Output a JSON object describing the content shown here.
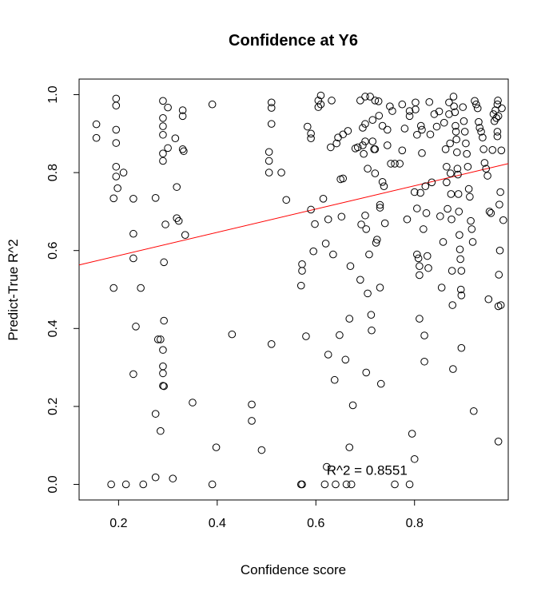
{
  "chart_data": {
    "type": "scatter",
    "title": "Confidence at Y6",
    "xlabel": "Confidence score",
    "ylabel": "Predict-True R^2",
    "xlim": [
      0.12,
      0.99
    ],
    "ylim": [
      -0.04,
      1.04
    ],
    "xticks": [
      0.2,
      0.4,
      0.6,
      0.8
    ],
    "xtick_labels": [
      "0.2",
      "0.4",
      "0.6",
      "0.8"
    ],
    "yticks": [
      0.0,
      0.2,
      0.4,
      0.6,
      0.8,
      1.0
    ],
    "ytick_labels": [
      "0.0",
      "0.2",
      "0.4",
      "0.6",
      "0.8",
      "1.0"
    ],
    "grid": false,
    "annotation": {
      "text": "R^2 = 0.8551",
      "x": 0.6,
      "y": 0.037
    },
    "regression_line": {
      "color": "#ff0000",
      "x": [
        0.12,
        0.99
      ],
      "y": [
        0.563,
        0.823
      ]
    },
    "points": [
      [
        0.155,
        0.924
      ],
      [
        0.155,
        0.889
      ],
      [
        0.19,
        0.734
      ],
      [
        0.19,
        0.504
      ],
      [
        0.195,
        0.99
      ],
      [
        0.195,
        0.972
      ],
      [
        0.195,
        0.91
      ],
      [
        0.195,
        0.876
      ],
      [
        0.195,
        0.815
      ],
      [
        0.195,
        0.79
      ],
      [
        0.198,
        0.76
      ],
      [
        0.21,
        0.8
      ],
      [
        0.185,
        0.0
      ],
      [
        0.215,
        0.0
      ],
      [
        0.23,
        0.733
      ],
      [
        0.23,
        0.643
      ],
      [
        0.23,
        0.58
      ],
      [
        0.23,
        0.283
      ],
      [
        0.235,
        0.405
      ],
      [
        0.245,
        0.504
      ],
      [
        0.25,
        0.0
      ],
      [
        0.275,
        0.735
      ],
      [
        0.275,
        0.181
      ],
      [
        0.28,
        0.372
      ],
      [
        0.285,
        0.372
      ],
      [
        0.285,
        0.137
      ],
      [
        0.29,
        0.984
      ],
      [
        0.29,
        0.94
      ],
      [
        0.29,
        0.919
      ],
      [
        0.29,
        0.897
      ],
      [
        0.29,
        0.849
      ],
      [
        0.29,
        0.83
      ],
      [
        0.29,
        0.345
      ],
      [
        0.29,
        0.303
      ],
      [
        0.29,
        0.285
      ],
      [
        0.29,
        0.253
      ],
      [
        0.292,
        0.252
      ],
      [
        0.292,
        0.42
      ],
      [
        0.292,
        0.57
      ],
      [
        0.295,
        0.667
      ],
      [
        0.3,
        0.967
      ],
      [
        0.3,
        0.863
      ],
      [
        0.275,
        0.018
      ],
      [
        0.31,
        0.015
      ],
      [
        0.315,
        0.888
      ],
      [
        0.318,
        0.763
      ],
      [
        0.318,
        0.683
      ],
      [
        0.322,
        0.676
      ],
      [
        0.33,
        0.96
      ],
      [
        0.33,
        0.945
      ],
      [
        0.33,
        0.86
      ],
      [
        0.332,
        0.855
      ],
      [
        0.335,
        0.64
      ],
      [
        0.35,
        0.21
      ],
      [
        0.39,
        0.975
      ],
      [
        0.39,
        0.0
      ],
      [
        0.398,
        0.095
      ],
      [
        0.43,
        0.385
      ],
      [
        0.47,
        0.205
      ],
      [
        0.47,
        0.163
      ],
      [
        0.49,
        0.088
      ],
      [
        0.505,
        0.853
      ],
      [
        0.505,
        0.83
      ],
      [
        0.505,
        0.8
      ],
      [
        0.51,
        0.98
      ],
      [
        0.51,
        0.966
      ],
      [
        0.51,
        0.925
      ],
      [
        0.51,
        0.36
      ],
      [
        0.53,
        0.8
      ],
      [
        0.54,
        0.73
      ],
      [
        0.57,
        0.51
      ],
      [
        0.572,
        0.565
      ],
      [
        0.572,
        0.548
      ],
      [
        0.57,
        0.0
      ],
      [
        0.572,
        0.0
      ],
      [
        0.58,
        0.38
      ],
      [
        0.583,
        0.918
      ],
      [
        0.59,
        0.9
      ],
      [
        0.59,
        0.888
      ],
      [
        0.59,
        0.705
      ],
      [
        0.595,
        0.598
      ],
      [
        0.598,
        0.668
      ],
      [
        0.605,
        0.985
      ],
      [
        0.605,
        0.968
      ],
      [
        0.61,
        0.975
      ],
      [
        0.61,
        0.998
      ],
      [
        0.615,
        0.733
      ],
      [
        0.618,
        0.0
      ],
      [
        0.62,
        0.618
      ],
      [
        0.622,
        0.045
      ],
      [
        0.625,
        0.333
      ],
      [
        0.625,
        0.68
      ],
      [
        0.63,
        0.865
      ],
      [
        0.632,
        0.985
      ],
      [
        0.635,
        0.59
      ],
      [
        0.638,
        0.268
      ],
      [
        0.64,
        0.0
      ],
      [
        0.642,
        0.875
      ],
      [
        0.645,
        0.89
      ],
      [
        0.648,
        0.383
      ],
      [
        0.65,
        0.783
      ],
      [
        0.652,
        0.687
      ],
      [
        0.655,
        0.785
      ],
      [
        0.655,
        0.898
      ],
      [
        0.66,
        0.32
      ],
      [
        0.662,
        0.0
      ],
      [
        0.665,
        0.907
      ],
      [
        0.668,
        0.425
      ],
      [
        0.668,
        0.095
      ],
      [
        0.67,
        0.56
      ],
      [
        0.672,
        0.0
      ],
      [
        0.675,
        0.203
      ],
      [
        0.68,
        0.862
      ],
      [
        0.685,
        0.865
      ],
      [
        0.69,
        0.985
      ],
      [
        0.69,
        0.525
      ],
      [
        0.692,
        0.667
      ],
      [
        0.695,
        0.915
      ],
      [
        0.695,
        0.87
      ],
      [
        0.697,
        0.848
      ],
      [
        0.7,
        0.995
      ],
      [
        0.7,
        0.925
      ],
      [
        0.7,
        0.88
      ],
      [
        0.7,
        0.69
      ],
      [
        0.702,
        0.655
      ],
      [
        0.702,
        0.287
      ],
      [
        0.705,
        0.81
      ],
      [
        0.705,
        0.49
      ],
      [
        0.708,
        0.59
      ],
      [
        0.71,
        0.995
      ],
      [
        0.712,
        0.435
      ],
      [
        0.713,
        0.395
      ],
      [
        0.715,
        0.88
      ],
      [
        0.715,
        0.935
      ],
      [
        0.718,
        0.86
      ],
      [
        0.72,
        0.86
      ],
      [
        0.72,
        0.985
      ],
      [
        0.72,
        0.798
      ],
      [
        0.722,
        0.62
      ],
      [
        0.724,
        0.628
      ],
      [
        0.727,
        0.983
      ],
      [
        0.728,
        0.946
      ],
      [
        0.73,
        0.71
      ],
      [
        0.73,
        0.717
      ],
      [
        0.73,
        0.505
      ],
      [
        0.732,
        0.258
      ],
      [
        0.735,
        0.92
      ],
      [
        0.735,
        0.776
      ],
      [
        0.738,
        0.765
      ],
      [
        0.74,
        0.67
      ],
      [
        0.745,
        0.91
      ],
      [
        0.745,
        0.87
      ],
      [
        0.75,
        0.97
      ],
      [
        0.752,
        0.823
      ],
      [
        0.755,
        0.958
      ],
      [
        0.76,
        0.0
      ],
      [
        0.76,
        0.823
      ],
      [
        0.77,
        0.823
      ],
      [
        0.775,
        0.975
      ],
      [
        0.775,
        0.857
      ],
      [
        0.78,
        0.913
      ],
      [
        0.785,
        0.68
      ],
      [
        0.79,
        0.958
      ],
      [
        0.79,
        0.945
      ],
      [
        0.79,
        0.0
      ],
      [
        0.795,
        0.13
      ],
      [
        0.8,
        0.065
      ],
      [
        0.8,
        0.75
      ],
      [
        0.802,
        0.98
      ],
      [
        0.802,
        0.962
      ],
      [
        0.805,
        0.897
      ],
      [
        0.805,
        0.708
      ],
      [
        0.805,
        0.59
      ],
      [
        0.808,
        0.58
      ],
      [
        0.81,
        0.56
      ],
      [
        0.81,
        0.537
      ],
      [
        0.81,
        0.425
      ],
      [
        0.812,
        0.748
      ],
      [
        0.813,
        0.92
      ],
      [
        0.815,
        0.91
      ],
      [
        0.815,
        0.85
      ],
      [
        0.818,
        0.655
      ],
      [
        0.82,
        0.382
      ],
      [
        0.82,
        0.315
      ],
      [
        0.822,
        0.765
      ],
      [
        0.824,
        0.696
      ],
      [
        0.826,
        0.586
      ],
      [
        0.828,
        0.555
      ],
      [
        0.83,
        0.981
      ],
      [
        0.832,
        0.898
      ],
      [
        0.835,
        0.775
      ],
      [
        0.84,
        0.95
      ],
      [
        0.845,
        0.918
      ],
      [
        0.85,
        0.957
      ],
      [
        0.852,
        0.688
      ],
      [
        0.855,
        0.505
      ],
      [
        0.858,
        0.622
      ],
      [
        0.86,
        0.928
      ],
      [
        0.863,
        0.86
      ],
      [
        0.865,
        0.815
      ],
      [
        0.865,
        0.775
      ],
      [
        0.867,
        0.707
      ],
      [
        0.87,
        0.98
      ],
      [
        0.87,
        0.95
      ],
      [
        0.872,
        0.875
      ],
      [
        0.873,
        0.798
      ],
      [
        0.874,
        0.745
      ],
      [
        0.875,
        0.68
      ],
      [
        0.876,
        0.548
      ],
      [
        0.877,
        0.46
      ],
      [
        0.878,
        0.296
      ],
      [
        0.879,
        0.995
      ],
      [
        0.88,
        0.97
      ],
      [
        0.882,
        0.955
      ],
      [
        0.883,
        0.92
      ],
      [
        0.884,
        0.905
      ],
      [
        0.885,
        0.885
      ],
      [
        0.886,
        0.852
      ],
      [
        0.887,
        0.81
      ],
      [
        0.888,
        0.795
      ],
      [
        0.889,
        0.745
      ],
      [
        0.89,
        0.7
      ],
      [
        0.891,
        0.64
      ],
      [
        0.892,
        0.603
      ],
      [
        0.893,
        0.578
      ],
      [
        0.894,
        0.5
      ],
      [
        0.895,
        0.485
      ],
      [
        0.895,
        0.35
      ],
      [
        0.895,
        0.548
      ],
      [
        0.898,
        0.968
      ],
      [
        0.9,
        0.932
      ],
      [
        0.902,
        0.905
      ],
      [
        0.904,
        0.875
      ],
      [
        0.906,
        0.848
      ],
      [
        0.908,
        0.815
      ],
      [
        0.91,
        0.758
      ],
      [
        0.912,
        0.738
      ],
      [
        0.914,
        0.676
      ],
      [
        0.916,
        0.655
      ],
      [
        0.918,
        0.622
      ],
      [
        0.92,
        0.188
      ],
      [
        0.922,
        0.984
      ],
      [
        0.925,
        0.975
      ],
      [
        0.928,
        0.965
      ],
      [
        0.93,
        0.93
      ],
      [
        0.932,
        0.915
      ],
      [
        0.935,
        0.905
      ],
      [
        0.938,
        0.89
      ],
      [
        0.94,
        0.86
      ],
      [
        0.942,
        0.825
      ],
      [
        0.945,
        0.81
      ],
      [
        0.948,
        0.792
      ],
      [
        0.95,
        0.475
      ],
      [
        0.952,
        0.7
      ],
      [
        0.955,
        0.696
      ],
      [
        0.958,
        0.858
      ],
      [
        0.96,
        0.95
      ],
      [
        0.962,
        0.932
      ],
      [
        0.964,
        0.96
      ],
      [
        0.966,
        0.94
      ],
      [
        0.968,
        0.905
      ],
      [
        0.968,
        0.893
      ],
      [
        0.968,
        0.975
      ],
      [
        0.969,
        0.985
      ],
      [
        0.97,
        0.945
      ],
      [
        0.97,
        0.11
      ],
      [
        0.97,
        0.457
      ],
      [
        0.971,
        0.538
      ],
      [
        0.972,
        0.718
      ],
      [
        0.973,
        0.6
      ],
      [
        0.974,
        0.75
      ],
      [
        0.975,
        0.46
      ],
      [
        0.976,
        0.857
      ],
      [
        0.977,
        0.965
      ],
      [
        0.98,
        0.678
      ]
    ]
  }
}
